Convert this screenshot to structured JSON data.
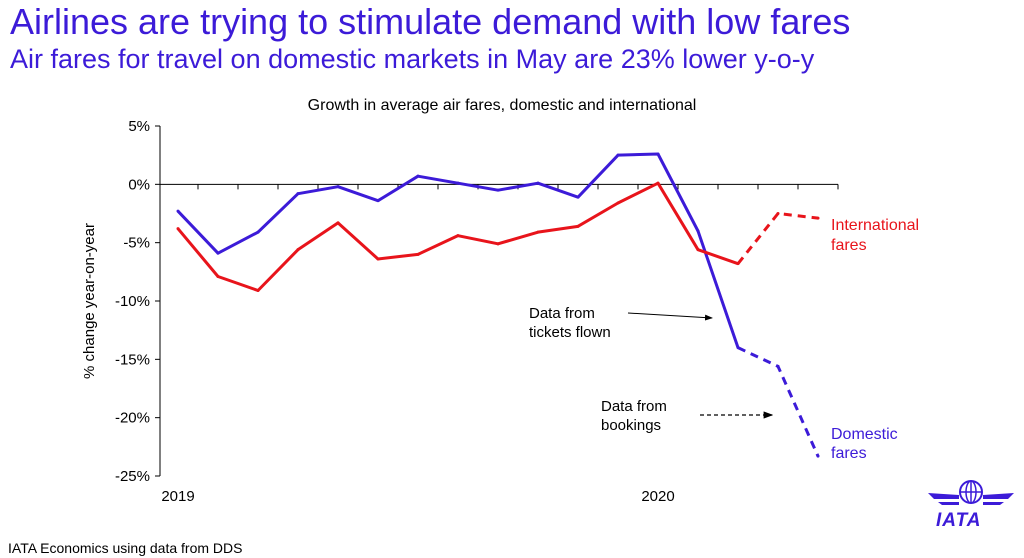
{
  "header": {
    "title": "Airlines are trying to stimulate demand with low fares",
    "subtitle": "Air fares for travel on domestic markets in May are 23% lower y-o-y"
  },
  "footer": {
    "source": "IATA Economics using data from DDS"
  },
  "logo": {
    "text": "IATA"
  },
  "colors": {
    "accent": "#3c1bd8",
    "domestic": "#3c1bd8",
    "international": "#e8141b"
  },
  "chart_data": {
    "type": "line",
    "title": "Growth in average air fares, domestic and international",
    "ylabel": "% change year-on-year",
    "xlabel": "",
    "ylim": [
      -25,
      5
    ],
    "yticks": [
      5,
      0,
      -5,
      -10,
      -15,
      -20,
      -25
    ],
    "ytick_labels": [
      "5%",
      "0%",
      "-5%",
      "-10%",
      "-15%",
      "-20%",
      "-25%"
    ],
    "x_tick_labels": [
      {
        "label": "2019",
        "index": 0
      },
      {
        "label": "2020",
        "index": 12
      }
    ],
    "grid": false,
    "series": [
      {
        "name": "Domestic fares",
        "color": "#3c1bd8",
        "values": [
          -2.3,
          -5.9,
          -4.1,
          -0.8,
          -0.2,
          -1.4,
          0.7,
          0.1,
          -0.5,
          0.1,
          -1.1,
          2.5,
          2.6,
          -4.0,
          -14.0,
          -15.6,
          -23.3
        ],
        "dashed_from_index": 14
      },
      {
        "name": "International fares",
        "color": "#e8141b",
        "values": [
          -3.8,
          -7.9,
          -9.1,
          -5.6,
          -3.3,
          -6.4,
          -6.0,
          -4.4,
          -5.1,
          -4.1,
          -3.6,
          -1.6,
          0.1,
          -5.6,
          -6.8,
          -2.5,
          -2.9
        ],
        "dashed_from_index": 14
      }
    ],
    "annotations": [
      {
        "text_lines": [
          "Data from",
          "tickets flown"
        ],
        "arrow": "solid"
      },
      {
        "text_lines": [
          "Data from",
          "bookings"
        ],
        "arrow": "dashed"
      }
    ],
    "series_labels": [
      {
        "text_lines": [
          "International",
          "fares"
        ],
        "color": "#e8141b"
      },
      {
        "text_lines": [
          "Domestic",
          "fares"
        ],
        "color": "#3c1bd8"
      }
    ]
  }
}
